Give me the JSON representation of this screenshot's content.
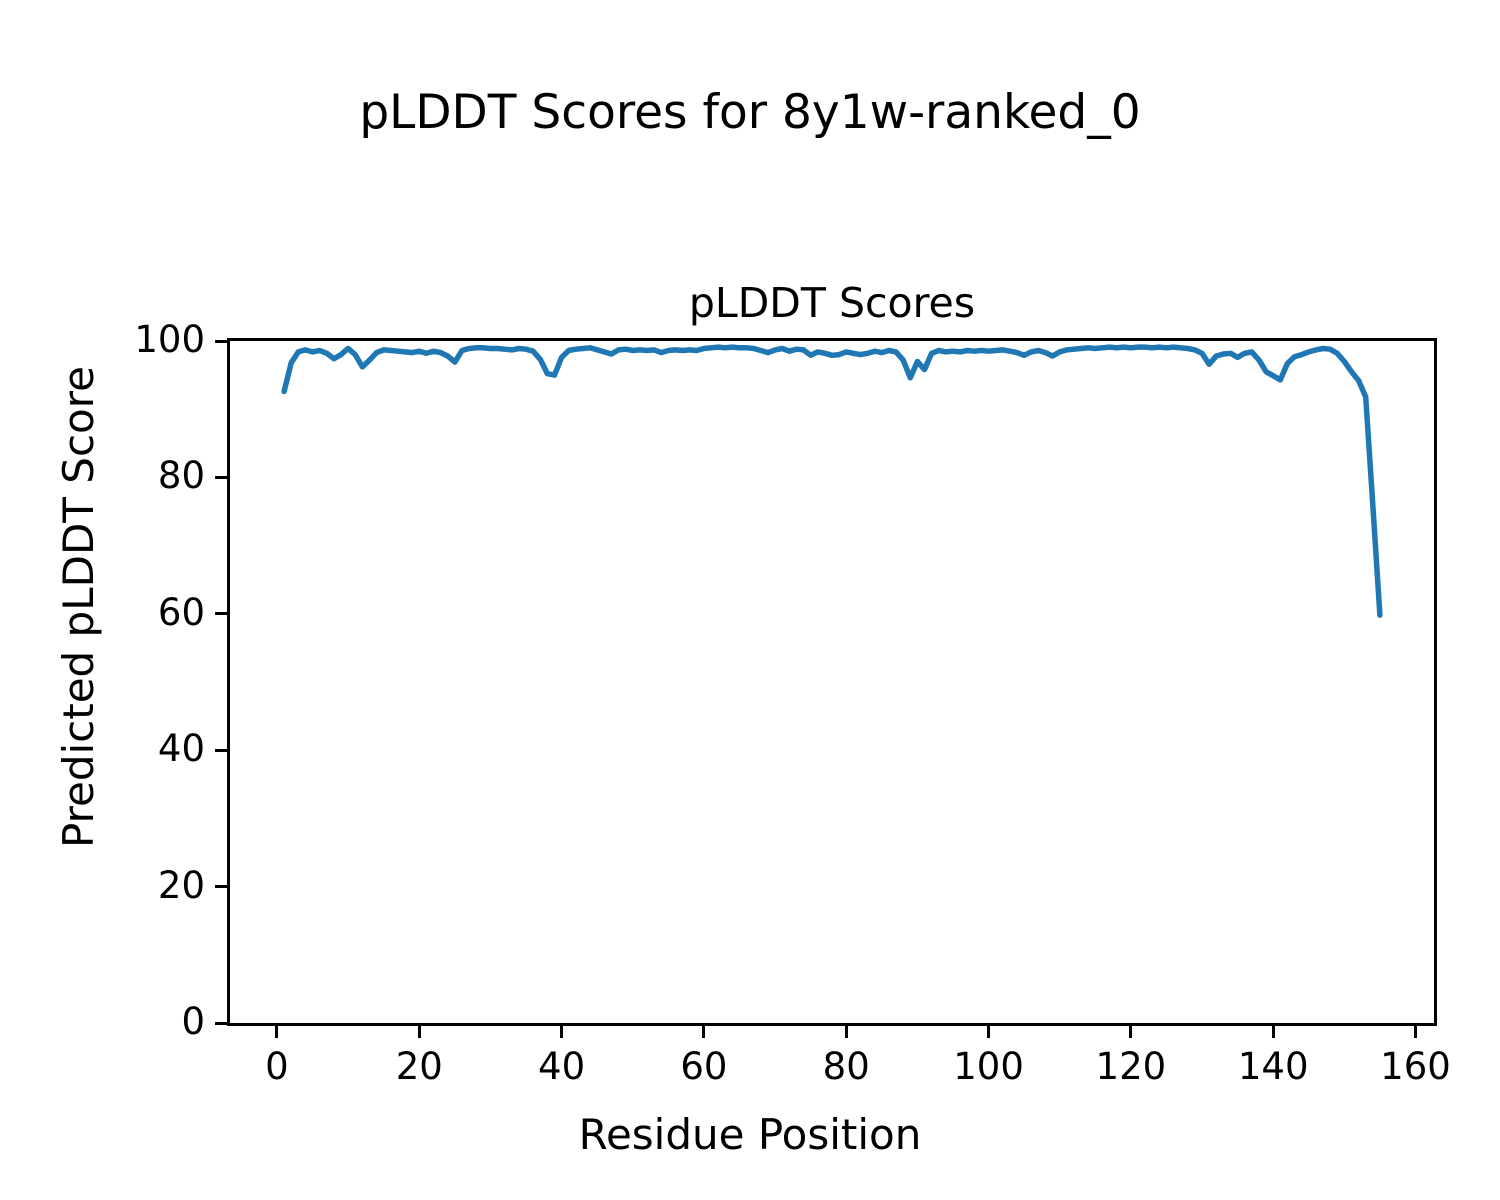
{
  "figure": {
    "suptitle": "pLDDT Scores for 8y1w-ranked_0",
    "background_color": "#ffffff",
    "text_color": "#000000"
  },
  "chart_data": {
    "type": "line",
    "title": "pLDDT Scores",
    "xlabel": "Residue Position",
    "ylabel": "Predicted pLDDT Score",
    "xlim": [
      -6.6,
      162.6
    ],
    "ylim": [
      0,
      100
    ],
    "xticks": [
      0,
      20,
      40,
      60,
      80,
      100,
      120,
      140,
      160
    ],
    "yticks": [
      0,
      20,
      40,
      60,
      80,
      100
    ],
    "grid": false,
    "legend": "none",
    "line_color": "#1f77b4",
    "line_width": 5.5,
    "series": [
      {
        "name": "pLDDT",
        "x_start": 1,
        "values": [
          92.6,
          96.8,
          98.4,
          98.7,
          98.4,
          98.6,
          98.2,
          97.4,
          98.0,
          98.9,
          98.0,
          96.2,
          97.2,
          98.3,
          98.7,
          98.6,
          98.5,
          98.4,
          98.3,
          98.5,
          98.2,
          98.5,
          98.3,
          97.8,
          96.9,
          98.6,
          98.9,
          99.0,
          99.0,
          98.9,
          98.9,
          98.8,
          98.7,
          98.9,
          98.8,
          98.5,
          97.3,
          95.2,
          95.0,
          97.6,
          98.6,
          98.8,
          98.9,
          99.0,
          98.7,
          98.4,
          98.1,
          98.7,
          98.8,
          98.6,
          98.7,
          98.6,
          98.7,
          98.3,
          98.6,
          98.7,
          98.6,
          98.7,
          98.6,
          98.9,
          99.0,
          99.1,
          99.0,
          99.1,
          99.0,
          99.0,
          98.9,
          98.6,
          98.3,
          98.7,
          98.9,
          98.5,
          98.8,
          98.7,
          97.9,
          98.4,
          98.2,
          97.9,
          98.0,
          98.4,
          98.2,
          98.0,
          98.2,
          98.5,
          98.3,
          98.6,
          98.4,
          97.2,
          94.6,
          97.0,
          95.8,
          98.2,
          98.6,
          98.4,
          98.5,
          98.4,
          98.6,
          98.5,
          98.6,
          98.5,
          98.6,
          98.7,
          98.5,
          98.3,
          97.9,
          98.4,
          98.6,
          98.3,
          97.8,
          98.4,
          98.7,
          98.8,
          98.9,
          99.0,
          98.9,
          99.0,
          99.1,
          99.0,
          99.1,
          99.0,
          99.1,
          99.1,
          99.0,
          99.1,
          99.0,
          99.1,
          99.0,
          98.9,
          98.7,
          98.2,
          96.6,
          97.8,
          98.1,
          98.2,
          97.6,
          98.2,
          98.4,
          97.2,
          95.5,
          94.9,
          94.3,
          96.7,
          97.7,
          98.0,
          98.4,
          98.7,
          98.9,
          98.8,
          98.2,
          97.0,
          95.5,
          94.2,
          91.8,
          76.0,
          59.8
        ]
      }
    ]
  }
}
